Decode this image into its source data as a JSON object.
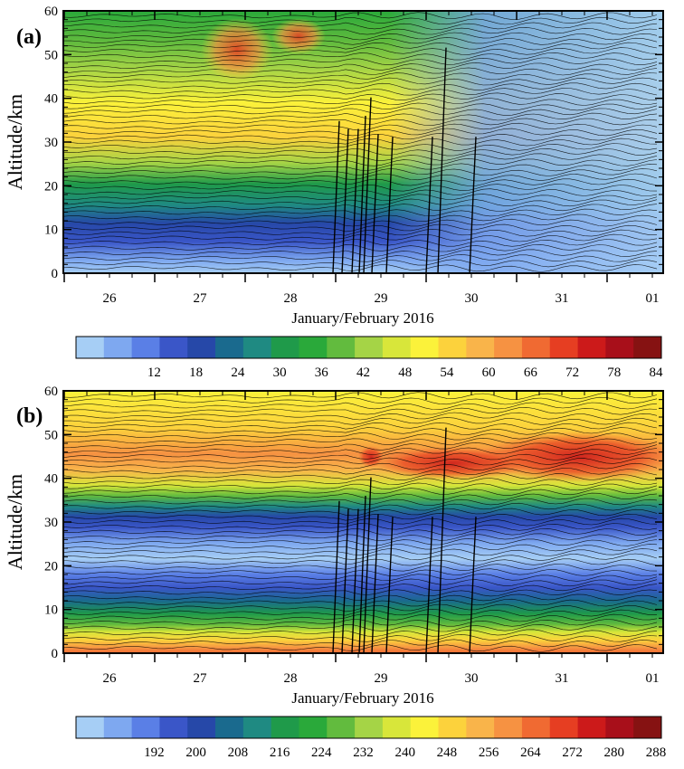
{
  "chart_data": [
    {
      "type": "heatmap",
      "panel_label": "(a)",
      "ylabel": "Altitude/km",
      "xlabel": "January/February 2016",
      "x_ticks": [
        "26",
        "27",
        "28",
        "29",
        "30",
        "31",
        "01"
      ],
      "y_ticks": [
        "0",
        "10",
        "20",
        "30",
        "40",
        "50",
        "60"
      ],
      "ylim": [
        0,
        60
      ],
      "colorbar_labels": [
        "12",
        "18",
        "24",
        "30",
        "36",
        "42",
        "48",
        "54",
        "60",
        "66",
        "72",
        "78",
        "84"
      ],
      "colorbar_colors": [
        "#a6cef5",
        "#7ea8f0",
        "#5a7fe6",
        "#3a56c8",
        "#2648a8",
        "#1a6a8e",
        "#1f8a82",
        "#1f9a4a",
        "#2aa93a",
        "#62bb3e",
        "#a5d446",
        "#d8e63a",
        "#fbf23a",
        "#fcd23c",
        "#f9b44a",
        "#f69242",
        "#f06a32",
        "#e63e22",
        "#cc1a1a",
        "#a80f1a",
        "#861212"
      ],
      "time_marks": [
        "29",
        "30",
        "31"
      ]
    },
    {
      "type": "heatmap",
      "panel_label": "(b)",
      "ylabel": "Altitude/km",
      "xlabel": "January/February 2016",
      "x_ticks": [
        "26",
        "27",
        "28",
        "29",
        "30",
        "31",
        "01"
      ],
      "y_ticks": [
        "0",
        "10",
        "20",
        "30",
        "40",
        "50",
        "60"
      ],
      "ylim": [
        0,
        60
      ],
      "colorbar_labels": [
        "192",
        "200",
        "208",
        "216",
        "224",
        "232",
        "240",
        "248",
        "256",
        "264",
        "272",
        "280",
        "288"
      ],
      "colorbar_colors": [
        "#a6cef5",
        "#7ea8f0",
        "#5a7fe6",
        "#3a56c8",
        "#2648a8",
        "#1a6a8e",
        "#1f8a82",
        "#1f9a4a",
        "#2aa93a",
        "#62bb3e",
        "#a5d446",
        "#d8e63a",
        "#fbf23a",
        "#fcd23c",
        "#f9b44a",
        "#f69242",
        "#f06a32",
        "#e63e22",
        "#cc1a1a",
        "#a80f1a",
        "#861212"
      ]
    }
  ]
}
